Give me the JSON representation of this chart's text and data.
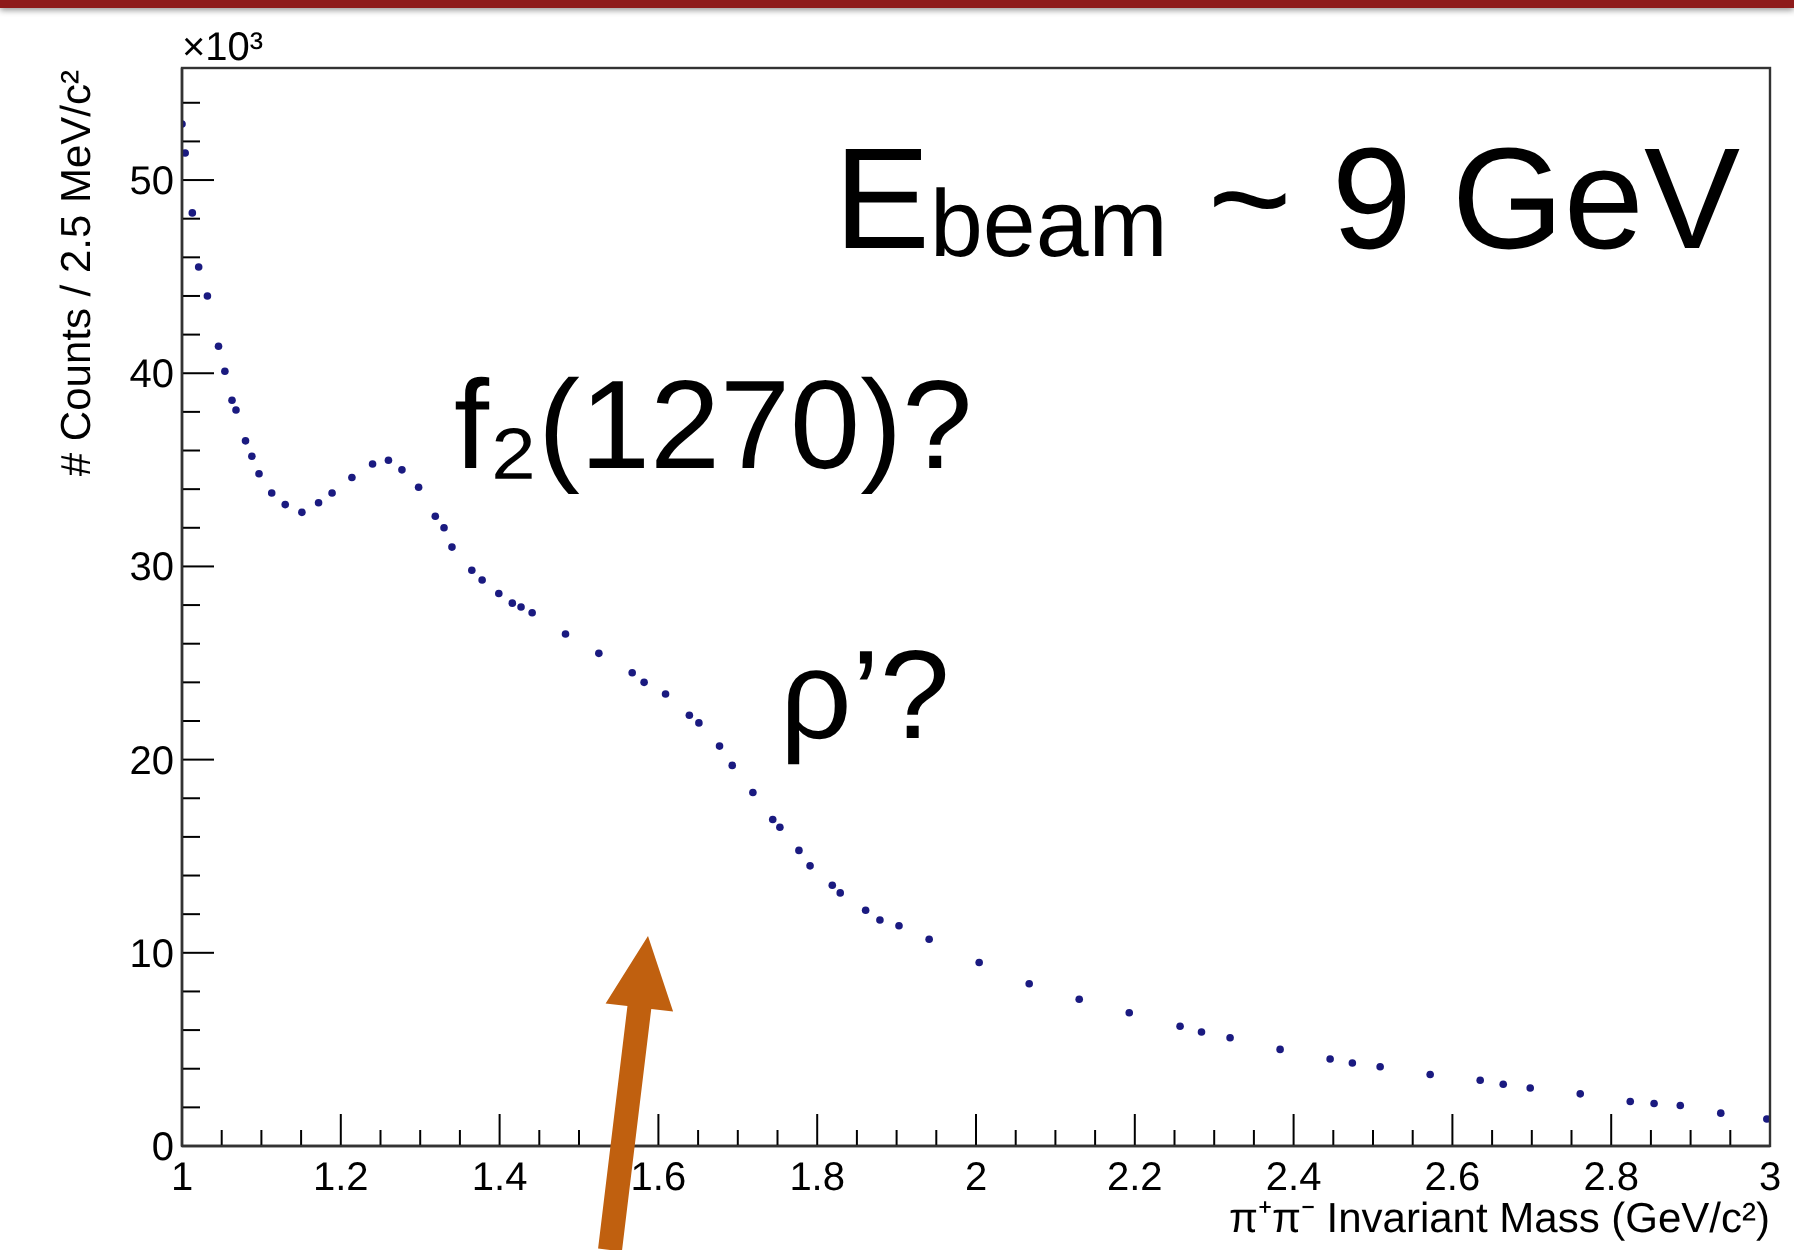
{
  "chart_data": {
    "type": "scatter",
    "xlabel": "π⁺π⁻ Invariant Mass (GeV/c²)",
    "ylabel": "# Counts / 2.5 MeV/c²",
    "annotations": [
      "×10³",
      "E$_{beam}$ ~ 9 GeV",
      "f₂(1270)?",
      "ρ’?"
    ],
    "x": [
      1.0,
      1.004,
      1.013,
      1.021,
      1.032,
      1.046,
      1.054,
      1.063,
      1.068,
      1.08,
      1.088,
      1.097,
      1.113,
      1.13,
      1.151,
      1.172,
      1.189,
      1.214,
      1.24,
      1.26,
      1.277,
      1.298,
      1.319,
      1.33,
      1.34,
      1.365,
      1.378,
      1.399,
      1.416,
      1.427,
      1.441,
      1.483,
      1.525,
      1.567,
      1.582,
      1.609,
      1.639,
      1.651,
      1.677,
      1.693,
      1.719,
      1.744,
      1.753,
      1.777,
      1.791,
      1.819,
      1.829,
      1.861,
      1.879,
      1.903,
      1.941,
      2.004,
      2.067,
      2.13,
      2.193,
      2.257,
      2.284,
      2.32,
      2.383,
      2.446,
      2.474,
      2.509,
      2.572,
      2.635,
      2.664,
      2.698,
      2.761,
      2.824,
      2.854,
      2.887,
      2.938,
      2.996
    ],
    "series": [
      {
        "color": "#1a1a80",
        "values": [
          52.9,
          51.4,
          48.3,
          45.5,
          44.0,
          41.4,
          40.1,
          38.6,
          38.1,
          36.5,
          35.7,
          34.8,
          33.8,
          33.2,
          32.8,
          33.3,
          33.8,
          34.6,
          35.3,
          35.5,
          35.0,
          34.1,
          32.6,
          32.0,
          31.0,
          29.8,
          29.3,
          28.6,
          28.1,
          27.9,
          27.6,
          26.5,
          25.5,
          24.5,
          24.0,
          23.4,
          22.3,
          21.9,
          20.7,
          19.7,
          18.3,
          16.9,
          16.5,
          15.3,
          14.5,
          13.5,
          13.1,
          12.2,
          11.7,
          11.4,
          10.7,
          9.5,
          8.4,
          7.6,
          6.9,
          6.2,
          5.9,
          5.6,
          5.0,
          4.5,
          4.3,
          4.1,
          3.7,
          3.4,
          3.2,
          3.0,
          2.7,
          2.3,
          2.2,
          2.1,
          1.7,
          1.4
        ]
      }
    ],
    "xlim": [
      1,
      3
    ],
    "ylim": [
      0,
      55.8
    ],
    "xticks": [
      1,
      {
        "value": 1.05,
        "label": null
      },
      {
        "value": 1.1,
        "label": null
      },
      {
        "value": 1.15,
        "label": null
      },
      1.2,
      {
        "value": 1.25,
        "label": null
      },
      {
        "value": 1.3,
        "label": null
      },
      {
        "value": 1.35,
        "label": null
      },
      1.4,
      {
        "value": 1.45,
        "label": null
      },
      {
        "value": 1.5,
        "label": null
      },
      {
        "value": 1.55,
        "label": null
      },
      1.6,
      {
        "value": 1.65,
        "label": null
      },
      {
        "value": 1.7,
        "label": null
      },
      {
        "value": 1.75,
        "label": null
      },
      1.8,
      {
        "value": 1.85,
        "label": null
      },
      {
        "value": 1.9,
        "label": null
      },
      {
        "value": 1.95,
        "label": null
      },
      2,
      {
        "value": 2.05,
        "label": null
      },
      {
        "value": 2.1,
        "label": null
      },
      {
        "value": 2.15,
        "label": null
      },
      2.2,
      {
        "value": 2.25,
        "label": null
      },
      {
        "value": 2.3,
        "label": null
      },
      {
        "value": 2.35,
        "label": null
      },
      2.4,
      {
        "value": 2.45,
        "label": null
      },
      {
        "value": 2.5,
        "label": null
      },
      {
        "value": 2.55,
        "label": null
      },
      2.6,
      {
        "value": 2.65,
        "label": null
      },
      {
        "value": 2.7,
        "label": null
      },
      {
        "value": 2.75,
        "label": null
      },
      2.8,
      {
        "value": 2.85,
        "label": null
      },
      {
        "value": 2.9,
        "label": null
      },
      {
        "value": 2.95,
        "label": null
      },
      3
    ],
    "yticks": [
      0,
      {
        "value": 2,
        "label": null
      },
      {
        "value": 4,
        "label": null
      },
      {
        "value": 6,
        "label": null
      },
      {
        "value": 8,
        "label": null
      },
      10,
      {
        "value": 12,
        "label": null
      },
      {
        "value": 14,
        "label": null
      },
      {
        "value": 16,
        "label": null
      },
      {
        "value": 18,
        "label": null
      },
      20,
      {
        "value": 22,
        "label": null
      },
      {
        "value": 24,
        "label": null
      },
      {
        "value": 26,
        "label": null
      },
      {
        "value": 28,
        "label": null
      },
      30,
      {
        "value": 32,
        "label": null
      },
      {
        "value": 34,
        "label": null
      },
      {
        "value": 36,
        "label": null
      },
      {
        "value": 38,
        "label": null
      },
      40,
      {
        "value": 42,
        "label": null
      },
      {
        "value": 44,
        "label": null
      },
      {
        "value": 46,
        "label": null
      },
      {
        "value": 48,
        "label": null
      },
      50,
      {
        "value": 52,
        "label": null
      },
      {
        "value": 54,
        "label": null
      }
    ],
    "marker": "circle"
  }
}
